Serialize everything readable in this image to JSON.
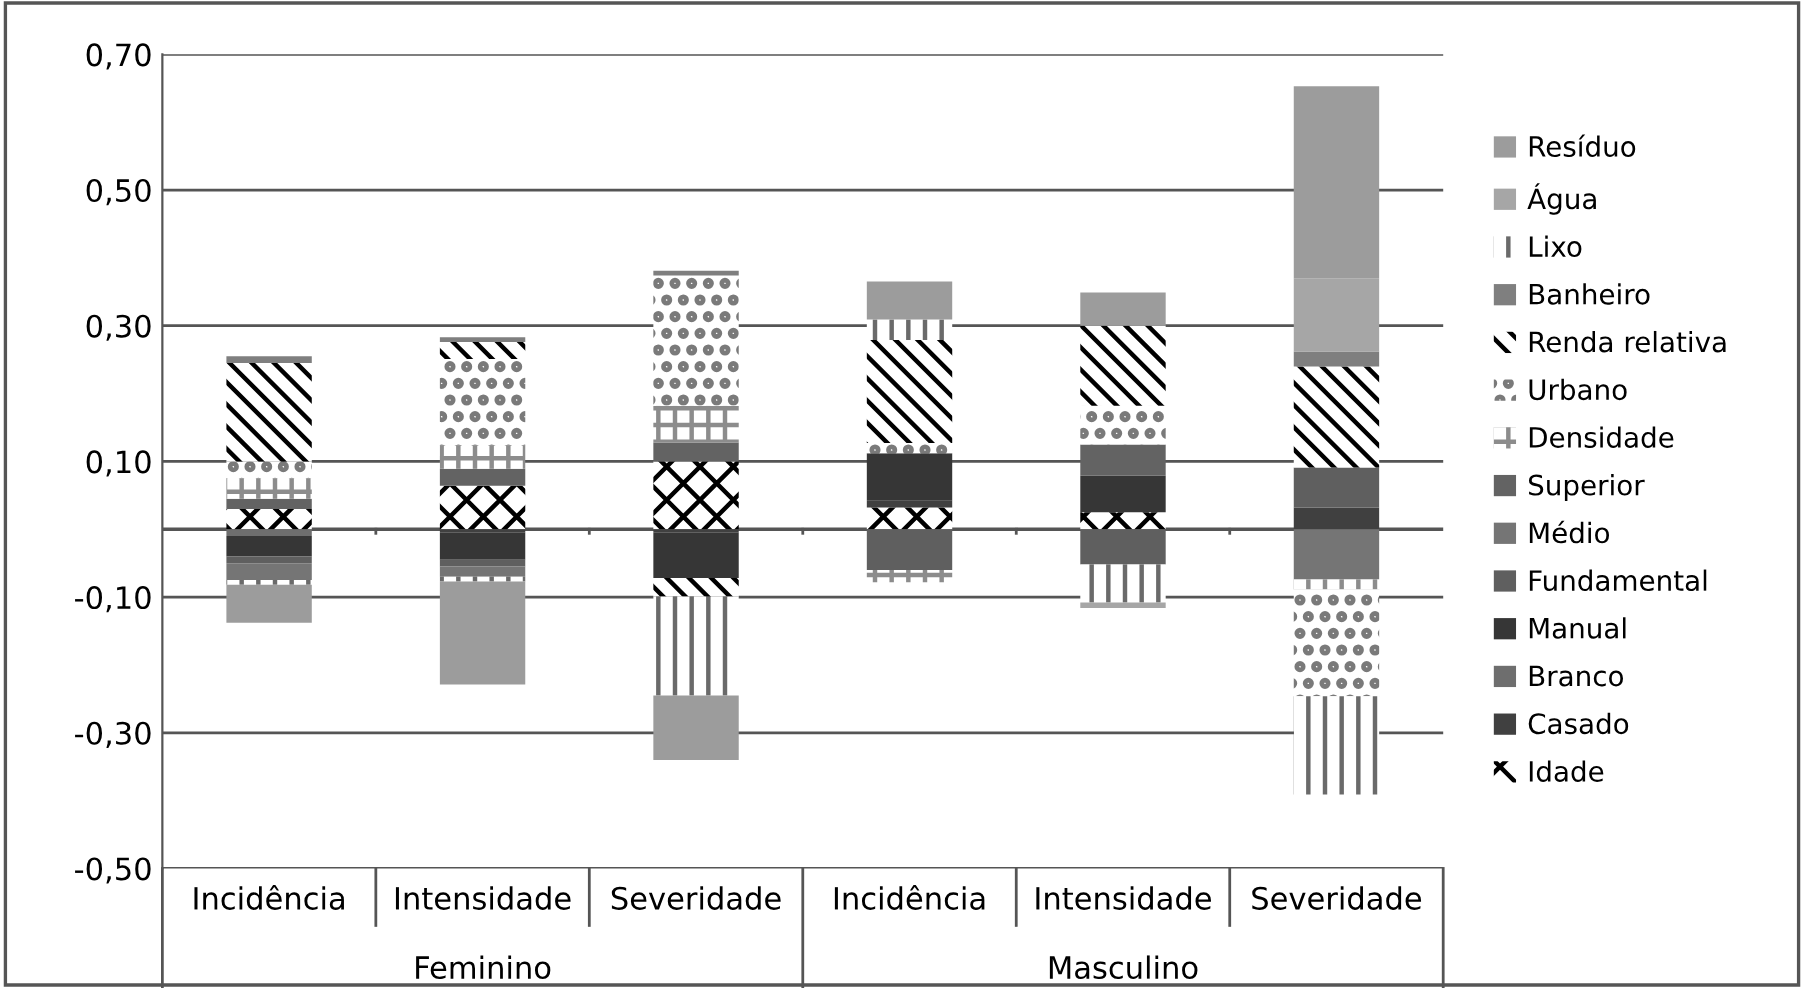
{
  "chart_data": {
    "type": "bar",
    "stacked": true,
    "categories": [
      "Incidência",
      "Intensidade",
      "Severidade",
      "Incidência",
      "Intensidade",
      "Severidade"
    ],
    "annotations": [
      "Feminino",
      "Masculino"
    ],
    "ylim": [
      -0.5,
      0.7
    ],
    "yticks": [
      {
        "value": -0.5,
        "label": "-0,50"
      },
      {
        "value": -0.3,
        "label": "-0,30"
      },
      {
        "value": -0.1,
        "label": "-0,10"
      },
      {
        "value": 0.1,
        "label": "0,10"
      },
      {
        "value": 0.3,
        "label": "0,30"
      },
      {
        "value": 0.5,
        "label": "0,50"
      },
      {
        "value": 0.7,
        "label": "0,70"
      }
    ],
    "grid": "y",
    "legend": "right",
    "series": [
      {
        "name": "Idade",
        "color": "#000000",
        "values": [
          0.03,
          0.064,
          0.1,
          0.032,
          0.025,
          null
        ]
      },
      {
        "name": "Casado",
        "color": "#404040",
        "values": [
          null,
          -0.005,
          -0.005,
          0.01,
          null,
          0.032
        ]
      },
      {
        "name": "Branco",
        "color": "#6e6e6e",
        "values": [
          -0.01,
          null,
          null,
          null,
          null,
          null
        ]
      },
      {
        "name": "Manual",
        "color": "#363636",
        "values": [
          -0.03,
          -0.04,
          -0.067,
          0.07,
          0.054,
          null
        ]
      },
      {
        "name": "Fundamental",
        "color": "#5f5f5f",
        "values": [
          -0.01,
          -0.01,
          null,
          -0.06,
          -0.052,
          0.059
        ]
      },
      {
        "name": "Médio",
        "color": "#757575",
        "values": [
          -0.025,
          -0.015,
          null,
          null,
          null,
          -0.074
        ]
      },
      {
        "name": "Superior",
        "color": "#636363",
        "values": [
          0.015,
          0.025,
          0.028,
          null,
          0.046,
          null
        ]
      },
      {
        "name": "Densidade",
        "color": "#8c8c8c",
        "values": [
          0.03,
          0.034,
          0.054,
          -0.018,
          null,
          -0.015
        ]
      },
      {
        "name": "Urbano",
        "color": "#7a7a7a",
        "values": [
          0.025,
          0.128,
          0.192,
          0.015,
          0.057,
          -0.157
        ]
      },
      {
        "name": "Renda relativa",
        "color": "#000000",
        "values": [
          0.145,
          0.025,
          -0.027,
          0.152,
          0.118,
          0.149
        ]
      },
      {
        "name": "Banheiro",
        "color": "#7f7f7f",
        "values": [
          0.01,
          0.007,
          0.007,
          null,
          null,
          0.022
        ]
      },
      {
        "name": "Lixo",
        "color": "#6a6a6a",
        "values": [
          -0.007,
          -0.007,
          -0.146,
          0.03,
          -0.056,
          -0.145
        ]
      },
      {
        "name": "Água",
        "color": "#a6a6a6",
        "values": [
          null,
          null,
          null,
          null,
          -0.008,
          0.108
        ]
      },
      {
        "name": "Resíduo",
        "color": "#9c9c9c",
        "values": [
          -0.056,
          -0.152,
          -0.095,
          0.056,
          0.049,
          0.283
        ]
      }
    ]
  }
}
